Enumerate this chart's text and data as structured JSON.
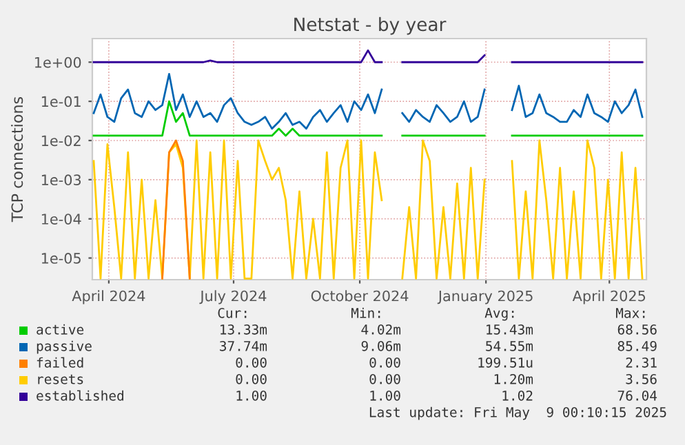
{
  "chart_data": {
    "type": "line",
    "title": "Netstat - by year",
    "ylabel": "TCP connections",
    "log": "y",
    "grid": true,
    "legend": "bottom",
    "marker": "none",
    "line_style": "solid",
    "ylim": [
      2.8e-06,
      4
    ],
    "yticks": [
      {
        "value": 1e-05,
        "label": "1e-05"
      },
      {
        "value": 0.0001,
        "label": "1e-04"
      },
      {
        "value": 0.001,
        "label": "1e-03"
      },
      {
        "value": 0.01,
        "label": "1e-02"
      },
      {
        "value": 0.1,
        "label": "1e-01"
      },
      {
        "value": 1,
        "label": "1e+00"
      }
    ],
    "xlim": [
      "2024-03-20",
      "2025-04-28"
    ],
    "xticks": [
      {
        "value": "2024-04-01",
        "label": "April 2024"
      },
      {
        "value": "2024-07-01",
        "label": "July 2024"
      },
      {
        "value": "2024-10-01",
        "label": "October 2024"
      },
      {
        "value": "2025-01-01",
        "label": "January 2025"
      },
      {
        "value": "2025-04-01",
        "label": "April 2025"
      }
    ],
    "x": [
      "2024-03-21",
      "2024-03-26",
      "2024-03-31",
      "2024-04-05",
      "2024-04-10",
      "2024-04-15",
      "2024-04-20",
      "2024-04-25",
      "2024-04-30",
      "2024-05-05",
      "2024-05-10",
      "2024-05-15",
      "2024-05-20",
      "2024-05-25",
      "2024-05-30",
      "2024-06-04",
      "2024-06-09",
      "2024-06-14",
      "2024-06-19",
      "2024-06-24",
      "2024-06-29",
      "2024-07-04",
      "2024-07-09",
      "2024-07-14",
      "2024-07-19",
      "2024-07-24",
      "2024-07-29",
      "2024-08-03",
      "2024-08-08",
      "2024-08-13",
      "2024-08-18",
      "2024-08-23",
      "2024-08-28",
      "2024-09-02",
      "2024-09-07",
      "2024-09-12",
      "2024-09-17",
      "2024-09-22",
      "2024-09-27",
      "2024-10-02",
      "2024-10-07",
      "2024-10-12",
      "2024-10-17",
      "2024-10-22",
      "2024-10-27",
      "2024-11-01",
      "2024-11-06",
      "2024-11-11",
      "2024-11-16",
      "2024-11-21",
      "2024-11-26",
      "2024-12-01",
      "2024-12-06",
      "2024-12-11",
      "2024-12-16",
      "2024-12-21",
      "2024-12-26",
      "2024-12-31",
      "2025-01-05",
      "2025-01-10",
      "2025-01-15",
      "2025-01-20",
      "2025-01-25",
      "2025-01-30",
      "2025-02-04",
      "2025-02-09",
      "2025-02-14",
      "2025-02-19",
      "2025-02-24",
      "2025-03-01",
      "2025-03-06",
      "2025-03-11",
      "2025-03-16",
      "2025-03-21",
      "2025-03-26",
      "2025-03-31",
      "2025-04-05",
      "2025-04-10",
      "2025-04-15",
      "2025-04-20",
      "2025-04-25"
    ],
    "series": [
      {
        "name": "active",
        "color": "#00cc00",
        "values": [
          0.0133,
          0.0133,
          0.0133,
          0.0133,
          0.0133,
          0.0133,
          0.0133,
          0.0133,
          0.0133,
          0.0133,
          0.0133,
          0.1,
          0.03,
          0.05,
          0.0133,
          0.0133,
          0.0133,
          0.0133,
          0.0133,
          0.0133,
          0.0133,
          0.0133,
          0.0133,
          0.0133,
          0.0133,
          0.0133,
          0.0133,
          0.02,
          0.0133,
          0.02,
          0.0133,
          0.0133,
          0.0133,
          0.0133,
          0.0133,
          0.0133,
          0.0133,
          0.0133,
          0.0133,
          0.0133,
          0.0133,
          0.0133,
          0.0133,
          null,
          null,
          0.0133,
          0.0133,
          0.0133,
          0.0133,
          0.0133,
          0.0133,
          0.0133,
          0.0133,
          0.0133,
          0.0133,
          0.0133,
          0.0133,
          0.0133,
          null,
          null,
          null,
          0.0133,
          0.0133,
          0.0133,
          0.0133,
          0.0133,
          0.0133,
          0.0133,
          0.0133,
          0.0133,
          0.0133,
          0.0133,
          0.0133,
          0.0133,
          0.0133,
          0.0133,
          0.0133,
          0.0133,
          0.0133,
          0.0133,
          0.0133
        ]
      },
      {
        "name": "passive",
        "color": "#0066b3",
        "values": [
          0.05,
          0.15,
          0.04,
          0.03,
          0.12,
          0.2,
          0.05,
          0.04,
          0.1,
          0.06,
          0.08,
          0.5,
          0.06,
          0.15,
          0.04,
          0.1,
          0.04,
          0.05,
          0.03,
          0.08,
          0.12,
          0.05,
          0.03,
          0.025,
          0.03,
          0.04,
          0.02,
          0.03,
          0.05,
          0.025,
          0.03,
          0.02,
          0.04,
          0.06,
          0.03,
          0.05,
          0.08,
          0.03,
          0.1,
          0.06,
          0.15,
          0.05,
          0.2,
          null,
          null,
          0.05,
          0.03,
          0.06,
          0.04,
          0.03,
          0.08,
          0.05,
          0.03,
          0.04,
          0.1,
          0.03,
          0.04,
          0.2,
          null,
          null,
          null,
          0.06,
          0.25,
          0.04,
          0.05,
          0.15,
          0.05,
          0.04,
          0.03,
          0.03,
          0.06,
          0.04,
          0.15,
          0.05,
          0.04,
          0.03,
          0.1,
          0.05,
          0.08,
          0.2,
          0.04
        ]
      },
      {
        "name": "failed",
        "color": "#ff8000",
        "values": [
          null,
          null,
          null,
          null,
          null,
          null,
          null,
          null,
          null,
          null,
          3e-06,
          0.005,
          0.01,
          0.003,
          3e-06,
          null,
          null,
          null,
          null,
          null,
          null,
          null,
          null,
          null,
          null,
          null,
          null,
          null,
          null,
          null,
          null,
          null,
          null,
          null,
          null,
          null,
          null,
          null,
          null,
          null,
          null,
          null,
          null,
          null,
          null,
          null,
          null,
          null,
          null,
          null,
          null,
          null,
          null,
          null,
          null,
          null,
          null,
          null,
          null,
          null,
          null,
          null,
          null,
          null,
          null,
          null,
          null,
          null,
          null,
          null,
          null,
          null,
          null,
          null,
          null,
          null,
          null,
          null,
          null,
          null,
          null
        ]
      },
      {
        "name": "resets",
        "color": "#ffcc00",
        "values": [
          0.003,
          3e-06,
          0.008,
          0.0002,
          3e-06,
          0.005,
          3e-06,
          0.001,
          3e-06,
          0.0003,
          3e-06,
          0.005,
          0.008,
          0.002,
          3e-06,
          0.01,
          3e-06,
          0.005,
          3e-06,
          0.01,
          3e-06,
          0.003,
          3e-06,
          3e-06,
          0.01,
          0.003,
          0.001,
          0.002,
          0.0003,
          3e-06,
          0.0005,
          3e-06,
          0.0001,
          3e-06,
          0.005,
          3e-06,
          0.002,
          0.01,
          3e-06,
          0.01,
          3e-06,
          0.005,
          0.0003,
          null,
          null,
          3e-06,
          0.0002,
          3e-06,
          0.01,
          0.003,
          3e-06,
          0.0002,
          3e-06,
          0.0008,
          3e-06,
          0.002,
          3e-06,
          0.001,
          null,
          null,
          null,
          0.003,
          3e-06,
          0.0005,
          3e-06,
          0.01,
          0.0003,
          3e-06,
          0.002,
          3e-06,
          0.0005,
          3e-06,
          0.01,
          0.002,
          3e-06,
          0.001,
          3e-06,
          0.005,
          3e-06,
          0.002,
          3e-06
        ]
      },
      {
        "name": "established",
        "color": "#330099",
        "values": [
          1,
          1,
          1,
          1,
          1,
          1,
          1,
          1,
          1,
          1,
          1,
          1,
          1,
          1,
          1,
          1,
          1,
          1.1,
          1,
          1,
          1,
          1,
          1,
          1,
          1,
          1,
          1,
          1,
          1,
          1,
          1,
          1,
          1,
          1,
          1,
          1,
          1,
          1,
          1,
          1,
          2,
          1,
          1,
          null,
          null,
          1,
          1,
          1,
          1,
          1,
          1,
          1,
          1,
          1,
          1,
          1,
          1,
          1.5,
          null,
          null,
          null,
          1,
          1,
          1,
          1,
          1,
          1,
          1,
          1,
          1,
          1,
          1,
          1,
          1,
          1,
          1,
          1,
          1,
          1,
          1,
          1
        ]
      }
    ],
    "annotations": [
      "Cur:",
      "Min:",
      "Avg:",
      "Max:",
      "13.33m",
      "4.02m",
      "15.43m",
      "68.56",
      "37.74m",
      "9.06m",
      "54.55m",
      "85.49",
      "0.00",
      "0.00",
      "199.51u",
      "2.31",
      "0.00",
      "0.00",
      "1.20m",
      "3.56",
      "1.00",
      "1.00",
      "1.02",
      "76.04",
      "Last update: Fri May  9 00:10:15 2025"
    ]
  }
}
